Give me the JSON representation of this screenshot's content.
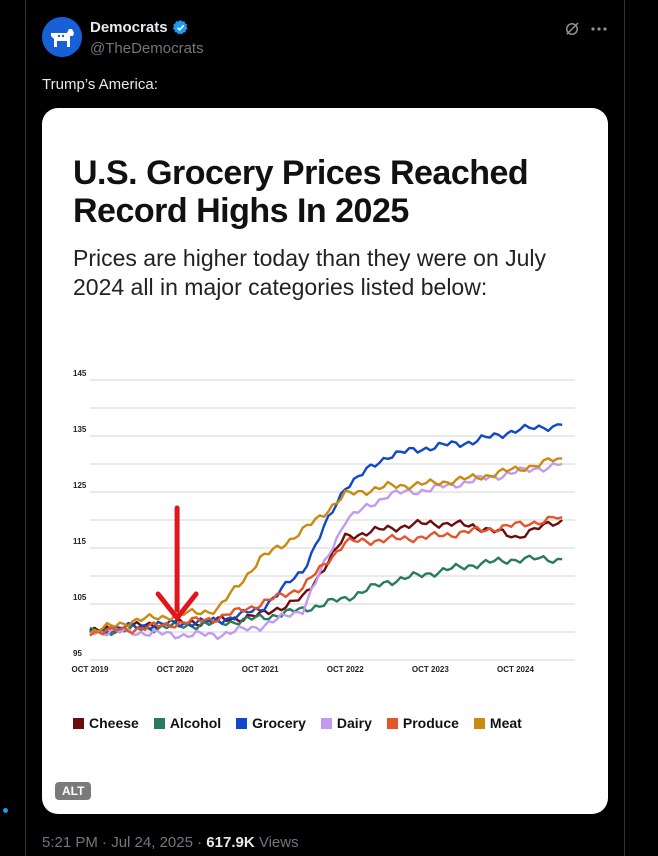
{
  "post": {
    "author_name": "Democrats",
    "handle": "@TheDemocrats",
    "text": "Trump’s America:",
    "time": "5:21 PM",
    "date": "Jul 24, 2025",
    "views_count": "617.9K",
    "views_label": "Views",
    "alt_label": "ALT",
    "separator": "·"
  },
  "image": {
    "title": "U.S. Grocery Prices Reached Record Highs In 2025",
    "subtitle": "Prices are higher today than they were on July 2024 all in major categories listed below:"
  },
  "colors": {
    "accent": "#1d9bf0",
    "arrow": "#e3141c"
  },
  "chart_data": {
    "type": "line",
    "title": "U.S. Grocery Prices Reached Record Highs In 2025",
    "ylim": [
      95,
      145
    ],
    "yticks": [
      95,
      105,
      115,
      125,
      135,
      145
    ],
    "x_labels": [
      "OCT 2019",
      "OCT 2020",
      "OCT 2021",
      "OCT 2022",
      "OCT 2023",
      "OCT 2024"
    ],
    "x": [
      2019.75,
      2020.25,
      2020.75,
      2021.25,
      2021.75,
      2022.25,
      2022.75,
      2023.25,
      2023.75,
      2024.25,
      2024.75,
      2025.3
    ],
    "annotation": "red downward arrow pointing at Oct 2020",
    "annotation_x": 2020.75,
    "series": [
      {
        "name": "Cheese",
        "color": "#6b0d0d",
        "values": [
          100,
          101,
          101.5,
          102,
          103,
          106,
          117,
          118.5,
          119.5,
          119,
          117,
          120
        ]
      },
      {
        "name": "Alcohol",
        "color": "#2a7a5e",
        "values": [
          100,
          100.5,
          101,
          101.5,
          102.5,
          104,
          106,
          109,
          110.5,
          112,
          113,
          113
        ]
      },
      {
        "name": "Grocery",
        "color": "#1048c8",
        "values": [
          100,
          101,
          101.5,
          102,
          104,
          111,
          126,
          131.5,
          133,
          134,
          136,
          137
        ]
      },
      {
        "name": "Dairy",
        "color": "#c29bf0",
        "values": [
          100,
          100,
          99.5,
          99.5,
          101,
          104,
          120,
          124.5,
          125.5,
          127,
          128.5,
          130
        ]
      },
      {
        "name": "Produce",
        "color": "#e4552c",
        "values": [
          100,
          100.5,
          101.5,
          102.5,
          105,
          108,
          116,
          116.5,
          117,
          118,
          119,
          120.5
        ]
      },
      {
        "name": "Meat",
        "color": "#c98a10",
        "values": [
          100,
          102,
          103,
          104,
          113,
          118,
          124.5,
          126,
          126.5,
          127.5,
          129,
          131
        ]
      }
    ]
  }
}
